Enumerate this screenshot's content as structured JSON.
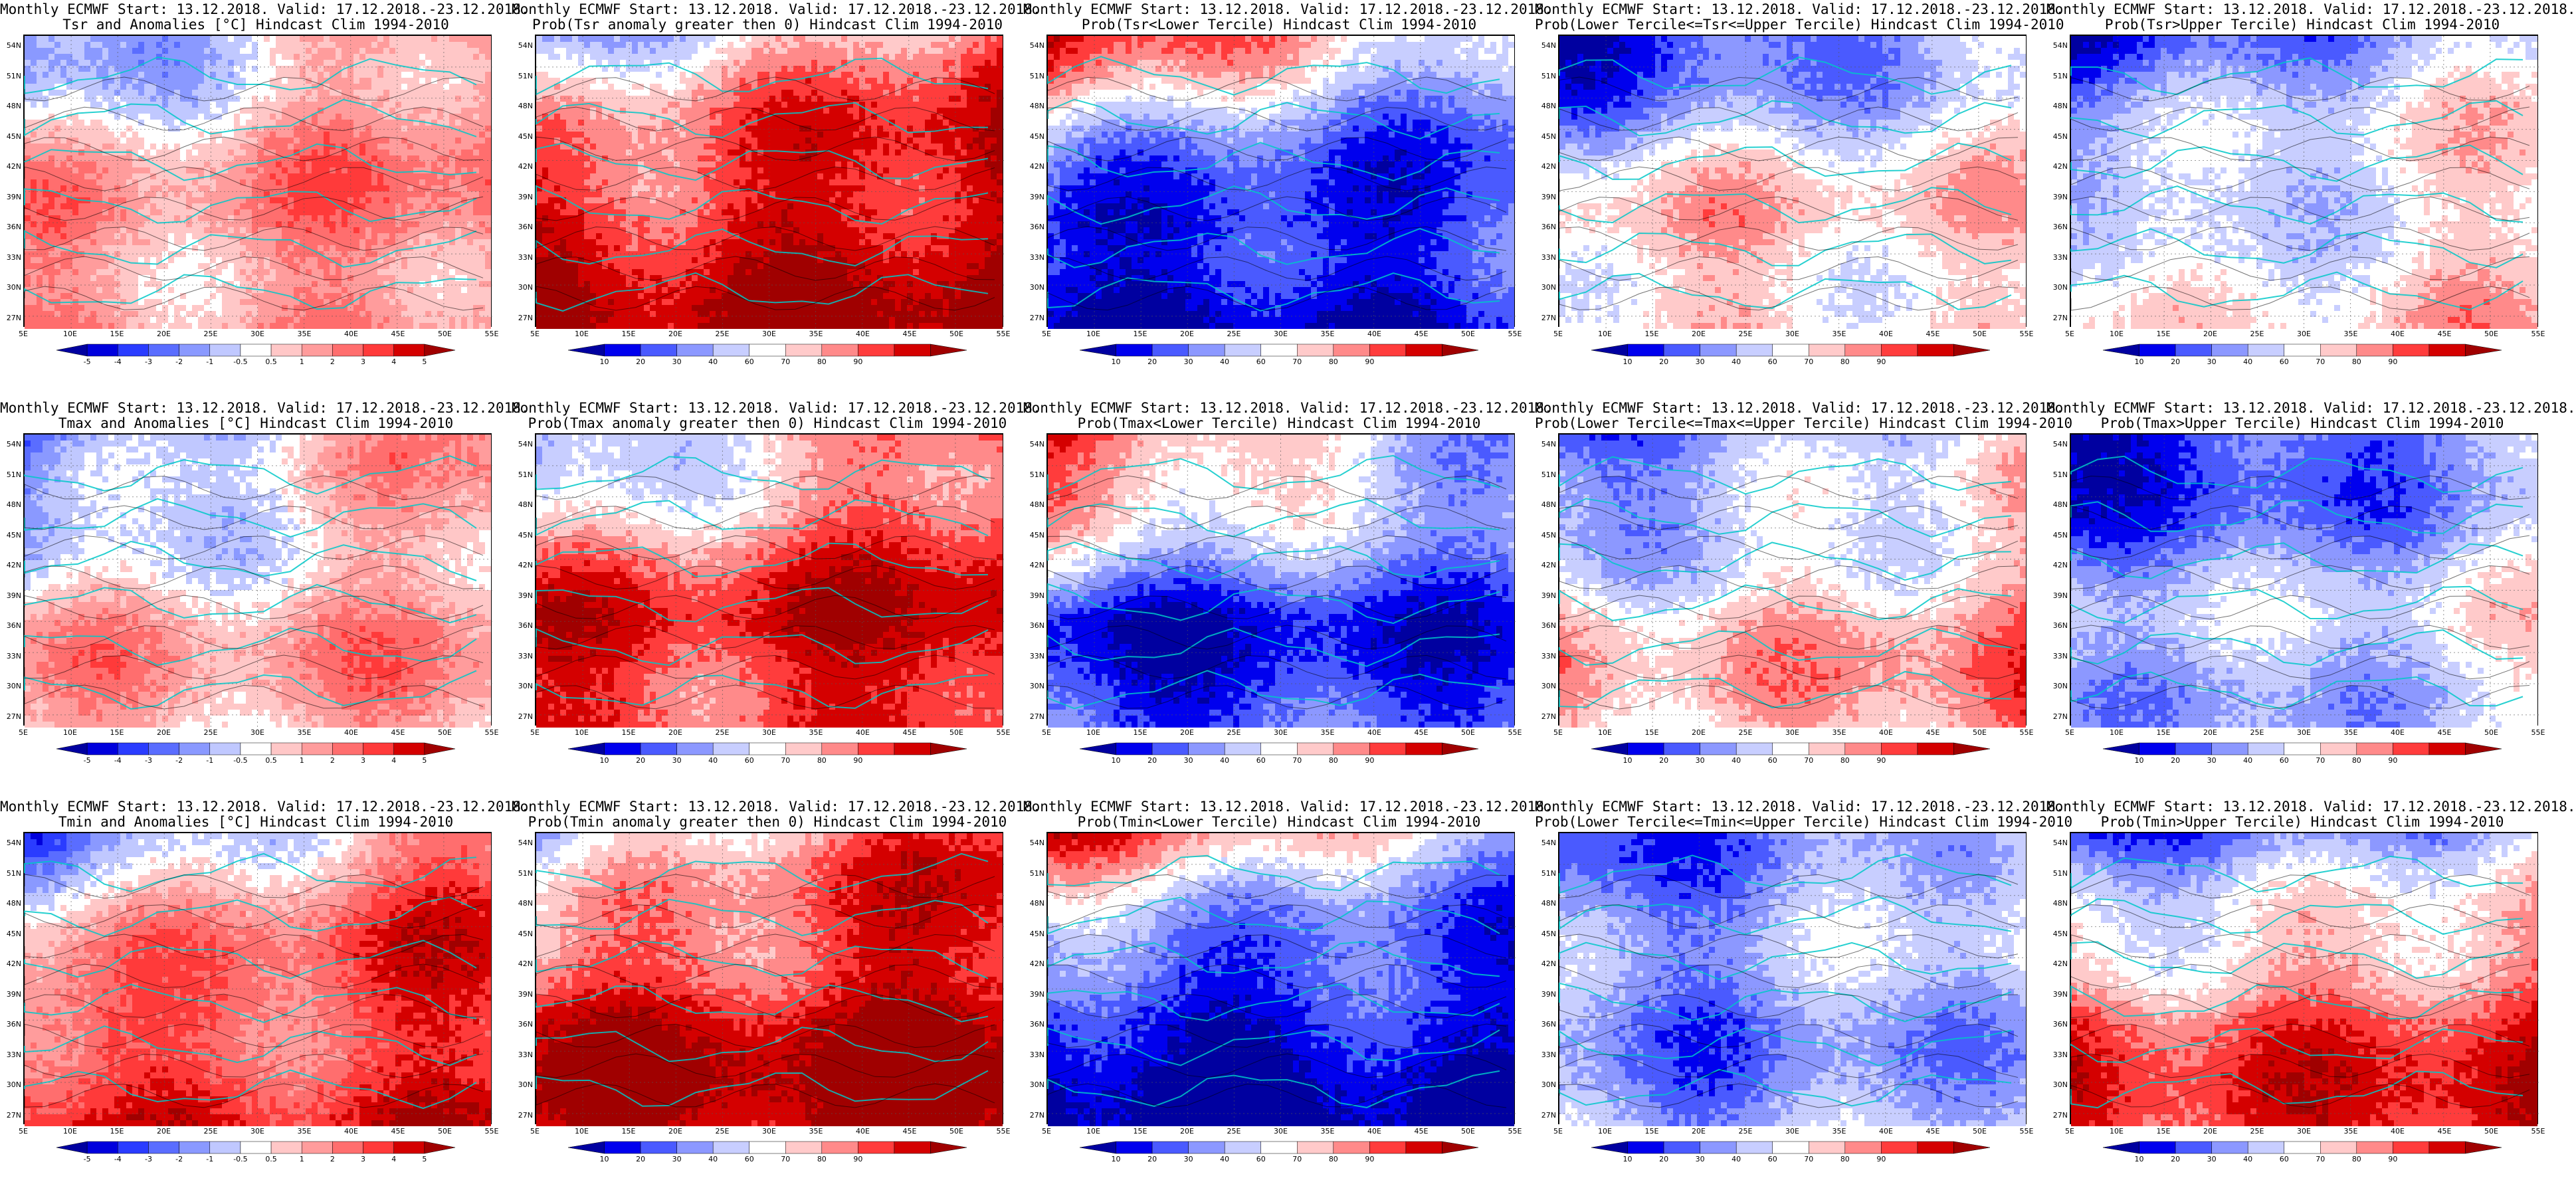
{
  "axes": {
    "lat_labels": [
      "54N",
      "51N",
      "48N",
      "45N",
      "42N",
      "39N",
      "36N",
      "33N",
      "30N",
      "27N"
    ],
    "lon_labels": [
      "5E",
      "10E",
      "15E",
      "20E",
      "25E",
      "30E",
      "35E",
      "40E",
      "45E",
      "50E",
      "55E"
    ]
  },
  "colorbars": {
    "anomaly": {
      "labels": [
        "-5",
        "-4",
        "-3",
        "-2",
        "-1",
        "-0.5",
        "0.5",
        "1",
        "2",
        "3",
        "4",
        "5"
      ],
      "colors": [
        "#0000a0",
        "#0000dd",
        "#2a3cff",
        "#5a6dff",
        "#8a99ff",
        "#c0c8ff",
        "#ffffff",
        "#ffc7c7",
        "#ff9c9c",
        "#ff6e6e",
        "#ff3a3a",
        "#d40000",
        "#a00000"
      ]
    },
    "probability": {
      "labels": [
        "10",
        "20",
        "30",
        "40",
        "60",
        "70",
        "80",
        "90"
      ],
      "colors": [
        "#0000a0",
        "#0000ee",
        "#4a5aff",
        "#8c98ff",
        "#c8ceff",
        "#ffffff",
        "#ffcaca",
        "#ff8a8a",
        "#ff3c3c",
        "#d40000",
        "#a00000"
      ]
    }
  },
  "panels": [
    {
      "line1": "Monthly ECMWF Start: 13.12.2018. Valid: 17.12.2018.-23.12.2018.",
      "line2": "Tsr and Anomalies [°C] Hindcast Clim 1994-2010",
      "scale": "anomaly"
    },
    {
      "line1": "Monthly ECMWF Start: 13.12.2018. Valid: 17.12.2018.-23.12.2018.",
      "line2": "Prob(Tsr anomaly greater then 0) Hindcast Clim 1994-2010",
      "scale": "probability"
    },
    {
      "line1": "Monthly ECMWF Start: 13.12.2018. Valid: 17.12.2018.-23.12.2018.",
      "line2": "Prob(Tsr<Lower Tercile) Hindcast Clim 1994-2010",
      "scale": "probability"
    },
    {
      "line1": "Monthly ECMWF Start: 13.12.2018. Valid: 17.12.2018.-23.12.2018.",
      "line2": "Prob(Lower Tercile<=Tsr<=Upper Tercile) Hindcast Clim 1994-2010",
      "scale": "probability"
    },
    {
      "line1": "Monthly ECMWF Start: 13.12.2018. Valid: 17.12.2018.-23.12.2018.",
      "line2": "Prob(Tsr>Upper Tercile) Hindcast Clim 1994-2010",
      "scale": "probability"
    },
    {
      "line1": "Monthly ECMWF Start: 13.12.2018. Valid: 17.12.2018.-23.12.2018.",
      "line2": "Tmax and Anomalies [°C] Hindcast Clim 1994-2010",
      "scale": "anomaly"
    },
    {
      "line1": "Monthly ECMWF Start: 13.12.2018. Valid: 17.12.2018.-23.12.2018.",
      "line2": "Prob(Tmax anomaly greater then 0) Hindcast Clim 1994-2010",
      "scale": "probability"
    },
    {
      "line1": "Monthly ECMWF Start: 13.12.2018. Valid: 17.12.2018.-23.12.2018.",
      "line2": "Prob(Tmax<Lower Tercile) Hindcast Clim 1994-2010",
      "scale": "probability"
    },
    {
      "line1": "Monthly ECMWF Start: 13.12.2018. Valid: 17.12.2018.-23.12.2018.",
      "line2": "Prob(Lower Tercile<=Tmax<=Upper Tercile) Hindcast Clim 1994-2010",
      "scale": "probability"
    },
    {
      "line1": "Monthly ECMWF Start: 13.12.2018. Valid: 17.12.2018.-23.12.2018.",
      "line2": "Prob(Tmax>Upper Tercile) Hindcast Clim 1994-2010",
      "scale": "probability"
    },
    {
      "line1": "Monthly ECMWF Start: 13.12.2018. Valid: 17.12.2018.-23.12.2018.",
      "line2": "Tmin and Anomalies [°C] Hindcast Clim 1994-2010",
      "scale": "anomaly"
    },
    {
      "line1": "Monthly ECMWF Start: 13.12.2018. Valid: 17.12.2018.-23.12.2018.",
      "line2": "Prob(Tmin anomaly greater then 0) Hindcast Clim 1994-2010",
      "scale": "probability"
    },
    {
      "line1": "Monthly ECMWF Start: 13.12.2018. Valid: 17.12.2018.-23.12.2018.",
      "line2": "Prob(Tmin<Lower Tercile) Hindcast Clim 1994-2010",
      "scale": "probability"
    },
    {
      "line1": "Monthly ECMWF Start: 13.12.2018. Valid: 17.12.2018.-23.12.2018.",
      "line2": "Prob(Lower Tercile<=Tmin<=Upper Tercile) Hindcast Clim 1994-2010",
      "scale": "probability"
    },
    {
      "line1": "Monthly ECMWF Start: 13.12.2018. Valid: 17.12.2018.-23.12.2018.",
      "line2": "Prob(Tmin>Upper Tercile) Hindcast Clim 1994-2010",
      "scale": "probability"
    }
  ]
}
